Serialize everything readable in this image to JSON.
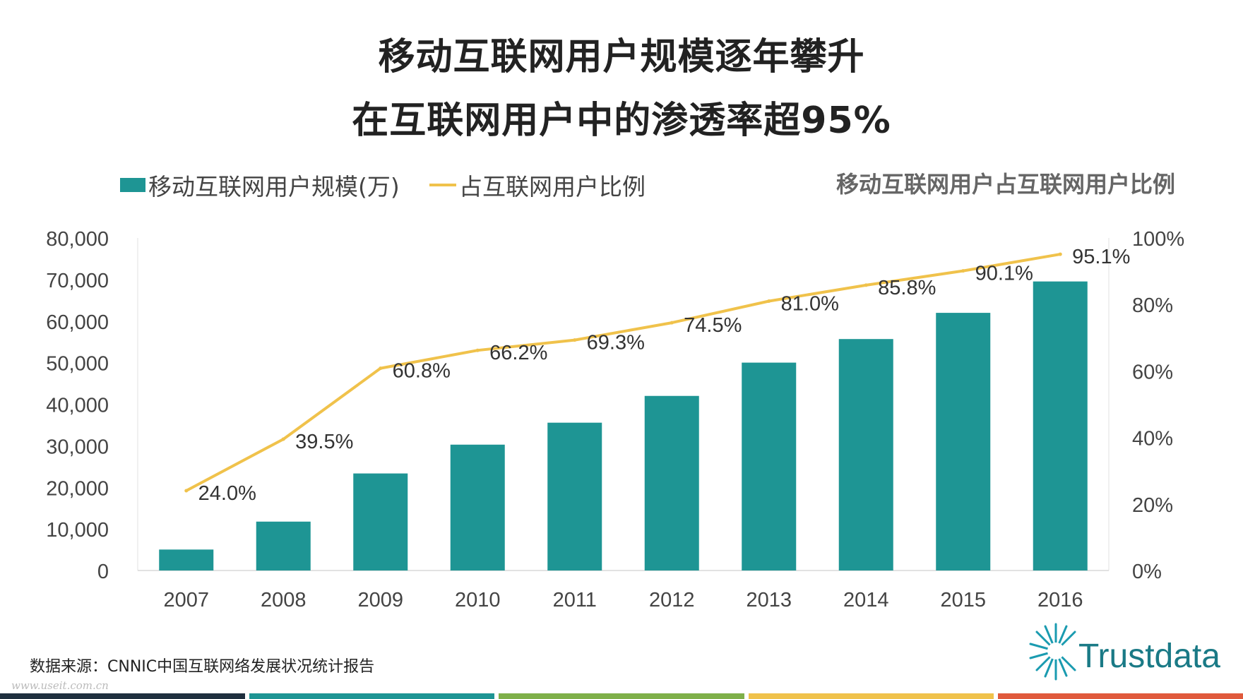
{
  "titles": {
    "line1": "移动互联网用户规模逐年攀升",
    "line2": "在互联网用户中的渗透率超95%"
  },
  "legend": {
    "bar_label": "移动互联网用户规模(万)",
    "line_label": "占互联网用户比例",
    "right_title": "移动互联网用户占互联网用户比例"
  },
  "colors": {
    "bar": "#1e9594",
    "line": "#f0c24b",
    "footer": [
      "#1f2f3e",
      "#1e9594",
      "#7fb04a",
      "#f0c24b",
      "#e05a3c"
    ]
  },
  "chart_data": {
    "type": "bar",
    "categories": [
      "2007",
      "2008",
      "2009",
      "2010",
      "2011",
      "2012",
      "2013",
      "2014",
      "2015",
      "2016"
    ],
    "series": [
      {
        "name": "移动互联网用户规模(万)",
        "type": "bar",
        "axis": "left",
        "values": [
          5040,
          11760,
          23344,
          30274,
          35558,
          41997,
          50006,
          55678,
          61981,
          69531
        ]
      },
      {
        "name": "占互联网用户比例",
        "type": "line",
        "axis": "right",
        "values": [
          24.0,
          39.5,
          60.8,
          66.2,
          69.3,
          74.5,
          81.0,
          85.8,
          90.1,
          95.1
        ],
        "labels": [
          "24.0%",
          "39.5%",
          "60.8%",
          "66.2%",
          "69.3%",
          "74.5%",
          "81.0%",
          "85.8%",
          "90.1%",
          "95.1%"
        ]
      }
    ],
    "y_left": {
      "min": 0,
      "max": 80000,
      "ticks": [
        "0",
        "10,000",
        "20,000",
        "30,000",
        "40,000",
        "50,000",
        "60,000",
        "70,000",
        "80,000"
      ]
    },
    "y_right": {
      "min": 0,
      "max": 100,
      "ticks": [
        "0%",
        "20%",
        "40%",
        "60%",
        "80%",
        "100%"
      ]
    }
  },
  "footer": {
    "source": "数据来源：CNNIC中国互联网络发展状况统计报告",
    "watermark": "www.useit.com.cn",
    "logo_text": "Trustdata"
  }
}
